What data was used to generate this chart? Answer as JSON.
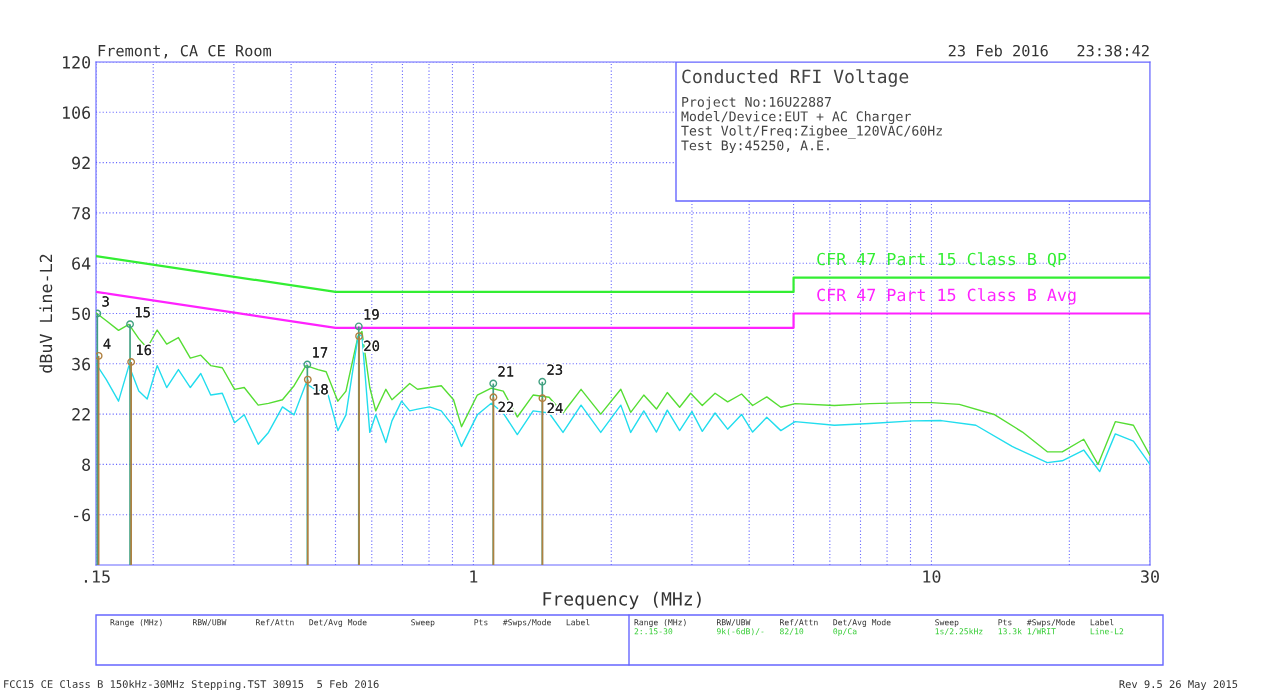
{
  "chart_data": {
    "type": "line",
    "title": "Conducted RFI Voltage",
    "xlabel": "Frequency (MHz)",
    "ylabel": "dBuV Line-L2",
    "log": "x",
    "xlim": [
      0.15,
      30
    ],
    "xticks": [
      {
        "value": 0.15,
        "label": ".15"
      },
      1,
      10,
      30
    ],
    "ylim": [
      -20,
      120
    ],
    "yticks": [
      -6,
      8,
      22,
      36,
      50,
      64,
      78,
      92,
      106,
      120
    ],
    "grid": true,
    "legend": false,
    "marker": "none",
    "line_style": "solid",
    "annotations": [
      "Fremont, CA CE Room",
      "23 Feb 2016   23:38:42",
      "Project No:16U22887",
      "Model/Device:EUT + AC Charger",
      "Test Volt/Freq:Zigbee_120VAC/60Hz",
      "Test By:45250, A.E.",
      "Range (MHz)      RBW/UBW      Ref/Attn   Det/Avg Mode         Sweep        Pts   #Swps/Mode   Label",
      "Range (MHz)      RBW/UBW      Ref/Attn   Det/Avg Mode         Sweep        Pts   #Swps/Mode   Label",
      "2:.15-30         9k(-6dB)/-   82/10      0p/Ca                1s/2.25kHz   13.3k 1/WRIT       Line-L2",
      "FCC15 CE Class B 150kHz-30MHz Stepping.TST 30915  5 Feb 2016",
      "Rev 9.5 26 May 2015",
      {
        "text": "3",
        "x": 0.151,
        "y": 50
      },
      {
        "text": "15",
        "x": 0.178,
        "y": 47
      },
      {
        "text": "17",
        "x": 0.434,
        "y": 35.8
      },
      {
        "text": "19",
        "x": 0.562,
        "y": 46.4
      },
      {
        "text": "21",
        "x": 1.105,
        "y": 30.5
      },
      {
        "text": "23",
        "x": 1.414,
        "y": 31
      },
      {
        "text": "4",
        "x": 0.152,
        "y": 38.2
      },
      {
        "text": "16",
        "x": 0.179,
        "y": 36.5
      },
      {
        "text": "18",
        "x": 0.435,
        "y": 31.6
      },
      {
        "text": "20",
        "x": 0.563,
        "y": 43.7
      },
      {
        "text": "22",
        "x": 1.106,
        "y": 26.7
      },
      {
        "text": "24",
        "x": 1.415,
        "y": 26.4
      }
    ],
    "series": [
      {
        "name": "CFR 47 Part 15 Class B QP",
        "color": "#33ee33",
        "x": [
          0.15,
          0.5,
          5,
          5,
          30
        ],
        "values": [
          66,
          56,
          56,
          60,
          60
        ]
      },
      {
        "name": "CFR 47 Part 15 Class B Avg",
        "color": "#ff22ff",
        "x": [
          0.15,
          0.5,
          5,
          5,
          30
        ],
        "values": [
          56,
          46,
          46,
          50,
          50
        ]
      },
      {
        "color": "#55dd33",
        "x": [
          0.15,
          0.158,
          0.168,
          0.177,
          0.186,
          0.194,
          0.204,
          0.214,
          0.227,
          0.241,
          0.254,
          0.267,
          0.283,
          0.301,
          0.316,
          0.339,
          0.357,
          0.383,
          0.406,
          0.431,
          0.458,
          0.477,
          0.506,
          0.527,
          0.56,
          0.571,
          0.594,
          0.612,
          0.644,
          0.664,
          0.697,
          0.726,
          0.755,
          0.802,
          0.851,
          0.905,
          0.942,
          1.02,
          1.094,
          1.162,
          1.247,
          1.35,
          1.463,
          1.569,
          1.718,
          1.897,
          2.098,
          2.205,
          2.355,
          2.51,
          2.65,
          2.82,
          2.98,
          3.16,
          3.37,
          3.59,
          3.85,
          4.07,
          4.37,
          4.69,
          5.04,
          6.14,
          7.34,
          9.1,
          10,
          11.5,
          13.7,
          15.8,
          17.9,
          19.3,
          21.5,
          23.1,
          25.2,
          27.6,
          30
        ],
        "values": [
          50.2,
          48,
          45.3,
          47,
          43,
          40.4,
          45.4,
          41.5,
          43.3,
          37.6,
          38.4,
          35.5,
          34.9,
          28.9,
          29.4,
          24.5,
          25,
          26,
          29.9,
          35.5,
          34.4,
          33.8,
          25.6,
          28.4,
          43.7,
          45,
          29.4,
          22.9,
          28.9,
          26,
          28.4,
          30.5,
          28.9,
          29.4,
          29.9,
          26,
          18.5,
          27.3,
          29.2,
          28.4,
          21.2,
          27.3,
          26.7,
          22.3,
          28.9,
          22,
          28.9,
          22.5,
          27.3,
          23.4,
          28,
          23.9,
          27.8,
          24.4,
          27.8,
          25.4,
          27.6,
          24.4,
          26.8,
          23.9,
          24.9,
          24.4,
          24.9,
          25.2,
          25.2,
          24.7,
          21.9,
          17,
          11.5,
          11.5,
          15,
          8,
          19.9,
          18.9,
          10.5
        ]
      },
      {
        "color": "#22ddee",
        "x": [
          0.15,
          0.158,
          0.168,
          0.177,
          0.186,
          0.194,
          0.204,
          0.214,
          0.227,
          0.241,
          0.254,
          0.267,
          0.283,
          0.301,
          0.316,
          0.339,
          0.357,
          0.383,
          0.406,
          0.431,
          0.458,
          0.477,
          0.506,
          0.527,
          0.56,
          0.571,
          0.594,
          0.612,
          0.644,
          0.664,
          0.697,
          0.726,
          0.755,
          0.802,
          0.851,
          0.905,
          0.942,
          1.02,
          1.094,
          1.162,
          1.247,
          1.35,
          1.463,
          1.569,
          1.718,
          1.897,
          2.098,
          2.205,
          2.355,
          2.51,
          2.65,
          2.82,
          3.0,
          3.16,
          3.37,
          3.59,
          3.85,
          4.07,
          4.37,
          4.69,
          5.04,
          6.14,
          7.34,
          9.1,
          10.5,
          12.5,
          15.0,
          17.9,
          19.3,
          21.5,
          23.3,
          25.2,
          27.6,
          30
        ],
        "values": [
          36,
          31.6,
          25.6,
          35.5,
          28.4,
          26.2,
          35.5,
          29.4,
          34.4,
          29.4,
          33.3,
          27.3,
          27.8,
          19.6,
          21.8,
          13.6,
          16.9,
          24,
          21.8,
          30.5,
          28.4,
          29.4,
          17.4,
          21.8,
          43.7,
          44,
          16.9,
          21.8,
          14.1,
          20.1,
          25.6,
          22.9,
          23.4,
          24,
          22.9,
          18.5,
          13,
          21.8,
          25,
          22.3,
          16.3,
          22.9,
          22.3,
          16.9,
          24.5,
          16.9,
          24.5,
          16.9,
          22.9,
          17,
          23.1,
          17.4,
          22.7,
          17.2,
          22.3,
          17.8,
          21.9,
          17,
          21.1,
          17.4,
          19.9,
          18.9,
          19.4,
          20.1,
          20.2,
          18.9,
          13,
          8.5,
          9,
          12,
          6,
          16.5,
          14.5,
          8
        ]
      },
      {
        "type": "lollipop",
        "marker": "circle",
        "color": "#40a080",
        "x": [
          0.151,
          0.178,
          0.434,
          0.562,
          1.105,
          1.414
        ],
        "values": [
          50,
          47,
          35.8,
          46.4,
          30.5,
          31
        ]
      },
      {
        "type": "lollipop",
        "marker": "circle",
        "color": "#b08040",
        "x": [
          0.152,
          0.179,
          0.435,
          0.563,
          1.106,
          1.415
        ],
        "values": [
          38.2,
          36.5,
          31.6,
          43.7,
          26.7,
          26.4
        ]
      }
    ]
  }
}
